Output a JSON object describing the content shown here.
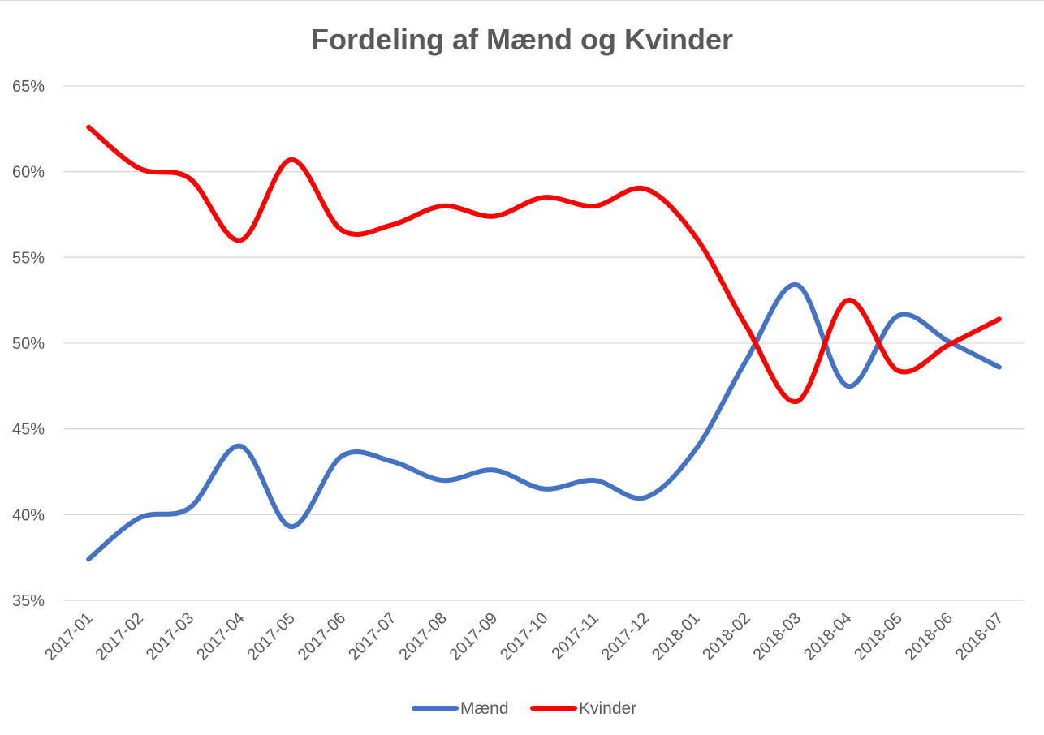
{
  "chart_data": {
    "type": "line",
    "title": "Fordeling af Mænd og Kvinder",
    "xlabel": "",
    "ylabel": "",
    "categories": [
      "2017-01",
      "2017-02",
      "2017-03",
      "2017-04",
      "2017-05",
      "2017-06",
      "2017-07",
      "2017-08",
      "2017-09",
      "2017-10",
      "2017-11",
      "2017-12",
      "2018-01",
      "2018-02",
      "2018-03",
      "2018-04",
      "2018-05",
      "2018-06",
      "2018-07"
    ],
    "series": [
      {
        "name": "Mænd",
        "color": "#4472c4",
        "values": [
          37.4,
          39.8,
          40.4,
          44.0,
          39.3,
          43.4,
          43.1,
          42.0,
          42.6,
          41.5,
          42.0,
          41.0,
          43.8,
          49.0,
          53.4,
          47.5,
          51.6,
          50.1,
          48.6
        ]
      },
      {
        "name": "Kvinder",
        "color": "#ff0000",
        "values": [
          62.6,
          60.2,
          59.6,
          56.0,
          60.7,
          56.6,
          56.9,
          58.0,
          57.4,
          58.5,
          58.0,
          59.0,
          56.2,
          51.0,
          46.6,
          52.5,
          48.4,
          49.9,
          51.4
        ]
      }
    ],
    "ylim": [
      35,
      65
    ],
    "yticks": [
      35,
      40,
      45,
      50,
      55,
      60,
      65
    ],
    "ytick_labels": [
      "35%",
      "40%",
      "45%",
      "50%",
      "55%",
      "60%",
      "65%"
    ],
    "grid": "horizontal",
    "smooth": true,
    "legend": "bottom-center"
  }
}
